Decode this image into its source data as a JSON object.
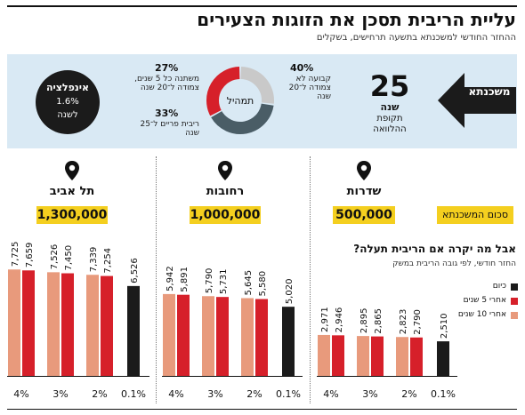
{
  "title": "עליית הריבית תסכן את הזוגות הצעירים",
  "subtitle": "ההחזר החודשי למשכנתא בתשעה תרחישים, בשקלים",
  "mortgage": {
    "label": "משכנתא",
    "years": "25",
    "years_unit": "שנה",
    "years_desc": "תקופת ההלוואה"
  },
  "donut": {
    "center_label": "תמהיל",
    "segments": [
      {
        "pct": "40%",
        "value": 40,
        "desc": "קבועה לא צמודה ל־20 שנה",
        "color": "#4a5d66"
      },
      {
        "pct": "33%",
        "value": 33,
        "desc": "ריבית פריים ל־25 שנה",
        "color": "#d6202a"
      },
      {
        "pct": "27%",
        "value": 27,
        "desc": "משתנה כל 5 שנים, צמודה ל־20 שנה",
        "color": "#c9c9c9"
      }
    ]
  },
  "inflation": {
    "title": "אינפלציה",
    "value": "1.6%",
    "unit": "לשנה"
  },
  "sum_label": "סכום המשכנתא",
  "question": {
    "title": "אבל מה יקרה אם הריבית תעלה?",
    "subtitle": "החזר חודשי, לפי גובה הריבית במשק"
  },
  "legend": [
    {
      "label": "כיום",
      "color": "#1b1b1b"
    },
    {
      "label": "אחרי 5 שנים",
      "color": "#d6202a"
    },
    {
      "label": "אחרי 10 שנים",
      "color": "#e89a7c"
    }
  ],
  "cities": [
    {
      "name": "תל אביב",
      "amount": "1,300,000"
    },
    {
      "name": "רחובות",
      "amount": "1,000,000"
    },
    {
      "name": "שדרות",
      "amount": "500,000"
    }
  ],
  "chart_data": {
    "type": "bar",
    "groups": [
      {
        "city": "תל אביב",
        "categories": [
          "4%",
          "3%",
          "2%",
          "0.1%"
        ],
        "series": [
          {
            "name": "אחרי 10 שנים",
            "values": [
              7725,
              7526,
              7339,
              null
            ]
          },
          {
            "name": "אחרי 5 שנים",
            "values": [
              7659,
              7450,
              7254,
              null
            ]
          },
          {
            "name": "כיום",
            "values": [
              null,
              null,
              null,
              6526
            ]
          }
        ]
      },
      {
        "city": "רחובות",
        "categories": [
          "4%",
          "3%",
          "2%",
          "0.1%"
        ],
        "series": [
          {
            "name": "אחרי 10 שנים",
            "values": [
              5942,
              5790,
              5645,
              null
            ]
          },
          {
            "name": "אחרי 5 שנים",
            "values": [
              5891,
              5731,
              5580,
              null
            ]
          },
          {
            "name": "כיום",
            "values": [
              null,
              null,
              null,
              5020
            ]
          }
        ]
      },
      {
        "city": "שדרות",
        "categories": [
          "4%",
          "3%",
          "2%",
          "0.1%"
        ],
        "series": [
          {
            "name": "אחרי 10 שנים",
            "values": [
              2971,
              2895,
              2823,
              null
            ]
          },
          {
            "name": "אחרי 5 שנים",
            "values": [
              2946,
              2865,
              2790,
              null
            ]
          },
          {
            "name": "כיום",
            "values": [
              null,
              null,
              null,
              2510
            ]
          }
        ]
      }
    ],
    "labels": [
      [
        "7,725",
        "7,659",
        "7,526",
        "7,450",
        "7,339",
        "7,254",
        "6,526"
      ],
      [
        "5,942",
        "5,891",
        "5,790",
        "5,731",
        "5,645",
        "5,580",
        "5,020"
      ],
      [
        "2,971",
        "2,946",
        "2,895",
        "2,865",
        "2,823",
        "2,790",
        "2,510"
      ]
    ]
  }
}
